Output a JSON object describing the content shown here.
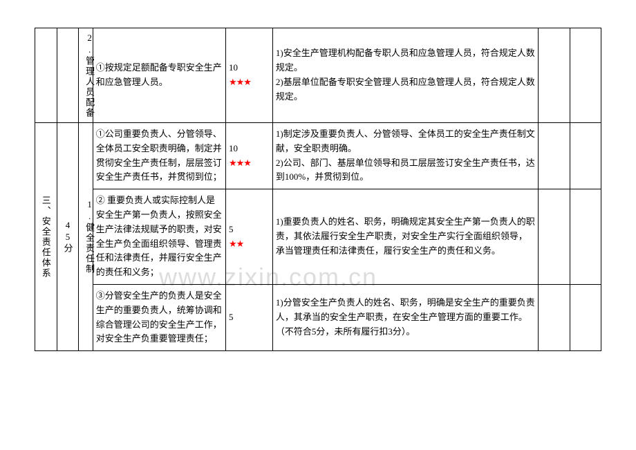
{
  "watermark": "www.zixin.com.cn",
  "rows": [
    {
      "cat": "",
      "sub": "",
      "item": "2.管理人员配备",
      "desc": "①按规定足额配备专职安全生产和应急管理人员。",
      "score": "10",
      "stars": "★★★",
      "criteria": "1)安全生产管理机构配备专职人员和应急管理人员，符合规定人数规定。\n2)基层单位配备专职安全管理人员和应急管理人员，符合规定人数规定。"
    },
    {
      "cat": "三、安全责任体系",
      "sub": "45分",
      "item": "1.健全责任制",
      "desc": "①公司重要负责人、分管领导、全体员工安全职责明确，制定并贯彻安全生产责任制，层层签订安全生产责任书，并贯彻到位；",
      "score": "10",
      "stars": "★★★",
      "criteria": "1)制定涉及重要负责人、分管领导、全体员工的安全生产责任制文献，安全职责明确。\n2)公司、部门、基层单位领导和员工层层签订安全生产责任书，达到100%，并贯彻到位。"
    },
    {
      "cat": "",
      "sub": "",
      "item": "",
      "desc": "② 重要负责人或实际控制人是安全生产第一负责人，按照安全生产法律法规赋予的职责，对安全生产负全面组织领导、管理责任和法律责任，并履行安全生产的责任和义务；",
      "score": "5",
      "stars": "★★",
      "criteria": "1)重要负责人的姓名、职务，明确规定其安全生产第一负责人的职责，其依法履行安全生产职责，对安全生产实行全面组织领导，承当管理责任和法律责任，履行安全生产的责任和义务。"
    },
    {
      "cat": "",
      "sub": "",
      "item": "",
      "desc": "③分管安全生产的负责人是安全生产的重要负责人，统筹协调和综合管理公司的安全生产工作，对安全生产负重要管理责任；",
      "score": "5",
      "stars": "",
      "criteria": "1)分管安全生产负责人的姓名、职务，明确是安全生产的重要负责人，其承当的安全生产职责，在安全生产管理方面的重要工作。（不符合5分，未所有履行扣3分）。"
    }
  ]
}
